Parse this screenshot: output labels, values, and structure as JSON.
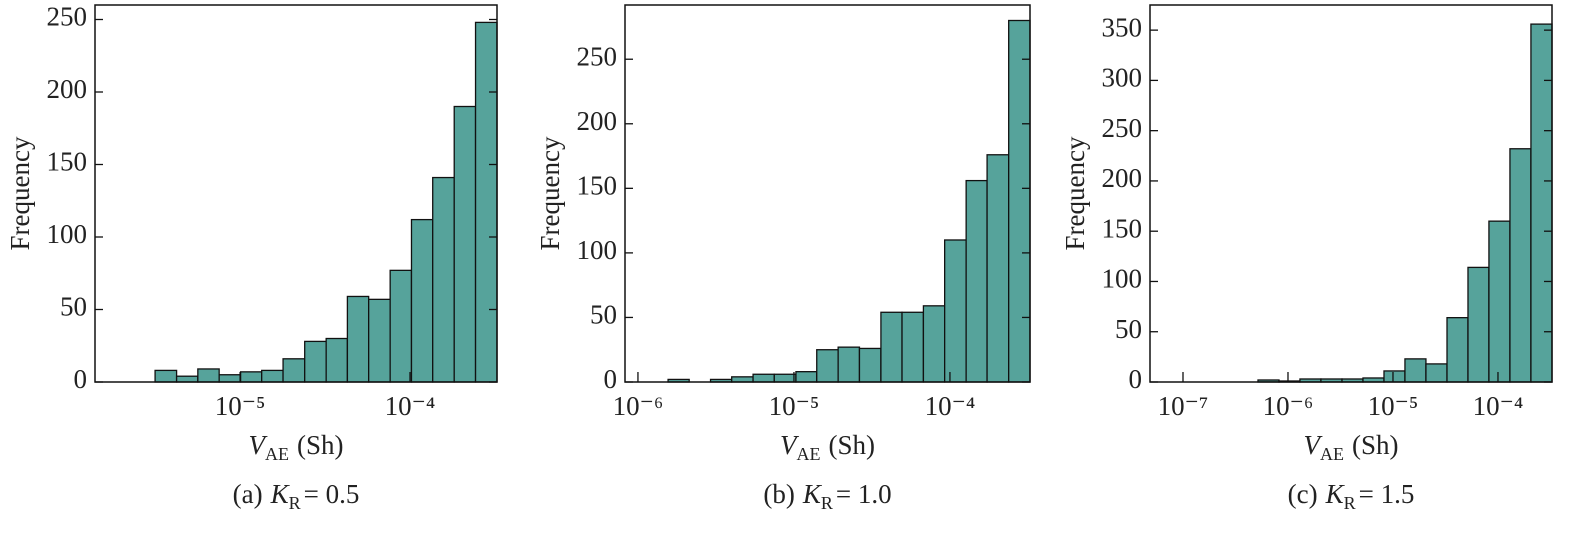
{
  "chart_data": [
    {
      "type": "histogram",
      "ylabel": "Frequency",
      "xlabel": {
        "symbol": "V",
        "subscript": "AE",
        "unit": "(Sh)"
      },
      "caption": {
        "label": "(a)",
        "symbol": "K",
        "subscript": "R",
        "value": "= 0.5"
      },
      "color": "#56a39b",
      "xscale": "log",
      "bins": [
        3.16e-06,
        4.23e-06,
        5.64e-06,
        7.53e-06,
        1.007e-05,
        1.34e-05,
        1.79e-05,
        2.4e-05,
        3.21e-05,
        4.28e-05,
        5.71e-05,
        7.64e-05,
        0.000102,
        0.000136,
        0.000182,
        0.000243,
        0.000325
      ],
      "values": [
        8,
        4,
        9,
        5,
        7,
        8,
        16,
        28,
        30,
        59,
        57,
        77,
        112,
        141,
        190,
        248
      ],
      "xlim": [
        1.4e-06,
        0.000325
      ],
      "xticks": [
        {
          "value": 1e-05,
          "label": "10⁻⁵"
        },
        {
          "value": 0.0001,
          "label": "10⁻⁴"
        }
      ],
      "ylim": [
        0,
        260
      ],
      "yticks": [
        0,
        50,
        100,
        150,
        200,
        250
      ]
    },
    {
      "type": "histogram",
      "ylabel": "Frequency",
      "xlabel": {
        "symbol": "V",
        "subscript": "AE",
        "unit": "(Sh)"
      },
      "caption": {
        "label": "(b)",
        "symbol": "K",
        "subscript": "R",
        "value": "= 1.0"
      },
      "color": "#56a39b",
      "xscale": "log",
      "bins": [
        1.56e-06,
        2.13e-06,
        2.92e-06,
        3.99e-06,
        5.47e-06,
        7.48e-06,
        1.03e-05,
        1.4e-05,
        1.92e-05,
        2.63e-05,
        3.61e-05,
        4.93e-05,
        6.76e-05,
        9.25e-05,
        0.000127,
        0.000173,
        0.000238,
        0.000326
      ],
      "values": [
        2,
        0,
        2,
        4,
        6,
        6,
        8,
        25,
        27,
        26,
        54,
        54,
        59,
        110,
        156,
        176,
        280
      ],
      "xlim": [
        8.26e-07,
        0.000326
      ],
      "xticks": [
        {
          "value": 1e-06,
          "label": "10⁻⁶"
        },
        {
          "value": 1e-05,
          "label": "10⁻⁵"
        },
        {
          "value": 0.0001,
          "label": "10⁻⁴"
        }
      ],
      "ylim": [
        0,
        292
      ],
      "yticks": [
        0,
        50,
        100,
        150,
        200,
        250
      ]
    },
    {
      "type": "histogram",
      "ylabel": "Frequency",
      "xlabel": {
        "symbol": "V",
        "subscript": "AE",
        "unit": "(Sh)"
      },
      "caption": {
        "label": "(c)",
        "symbol": "K",
        "subscript": "R",
        "value": "= 1.5"
      },
      "color": "#56a39b",
      "xscale": "log",
      "bins": [
        5.18e-07,
        8.21e-07,
        1.3e-06,
        2.06e-06,
        3.27e-06,
        5.18e-06,
        8.21e-06,
        1.3e-05,
        2.06e-05,
        3.27e-05,
        5.18e-05,
        8.2e-05,
        0.00013,
        0.000206,
        0.000327
      ],
      "values": [
        2,
        1,
        3,
        3,
        3,
        4,
        11,
        23,
        18,
        64,
        114,
        160,
        232,
        356
      ],
      "xlim": [
        4.85e-08,
        0.000327
      ],
      "xticks": [
        {
          "value": 1e-07,
          "label": "10⁻⁷"
        },
        {
          "value": 1e-06,
          "label": "10⁻⁶"
        },
        {
          "value": 1e-05,
          "label": "10⁻⁵"
        },
        {
          "value": 0.0001,
          "label": "10⁻⁴"
        }
      ],
      "ylim": [
        0,
        375
      ],
      "yticks": [
        0,
        50,
        100,
        150,
        200,
        250,
        300,
        350
      ]
    }
  ]
}
